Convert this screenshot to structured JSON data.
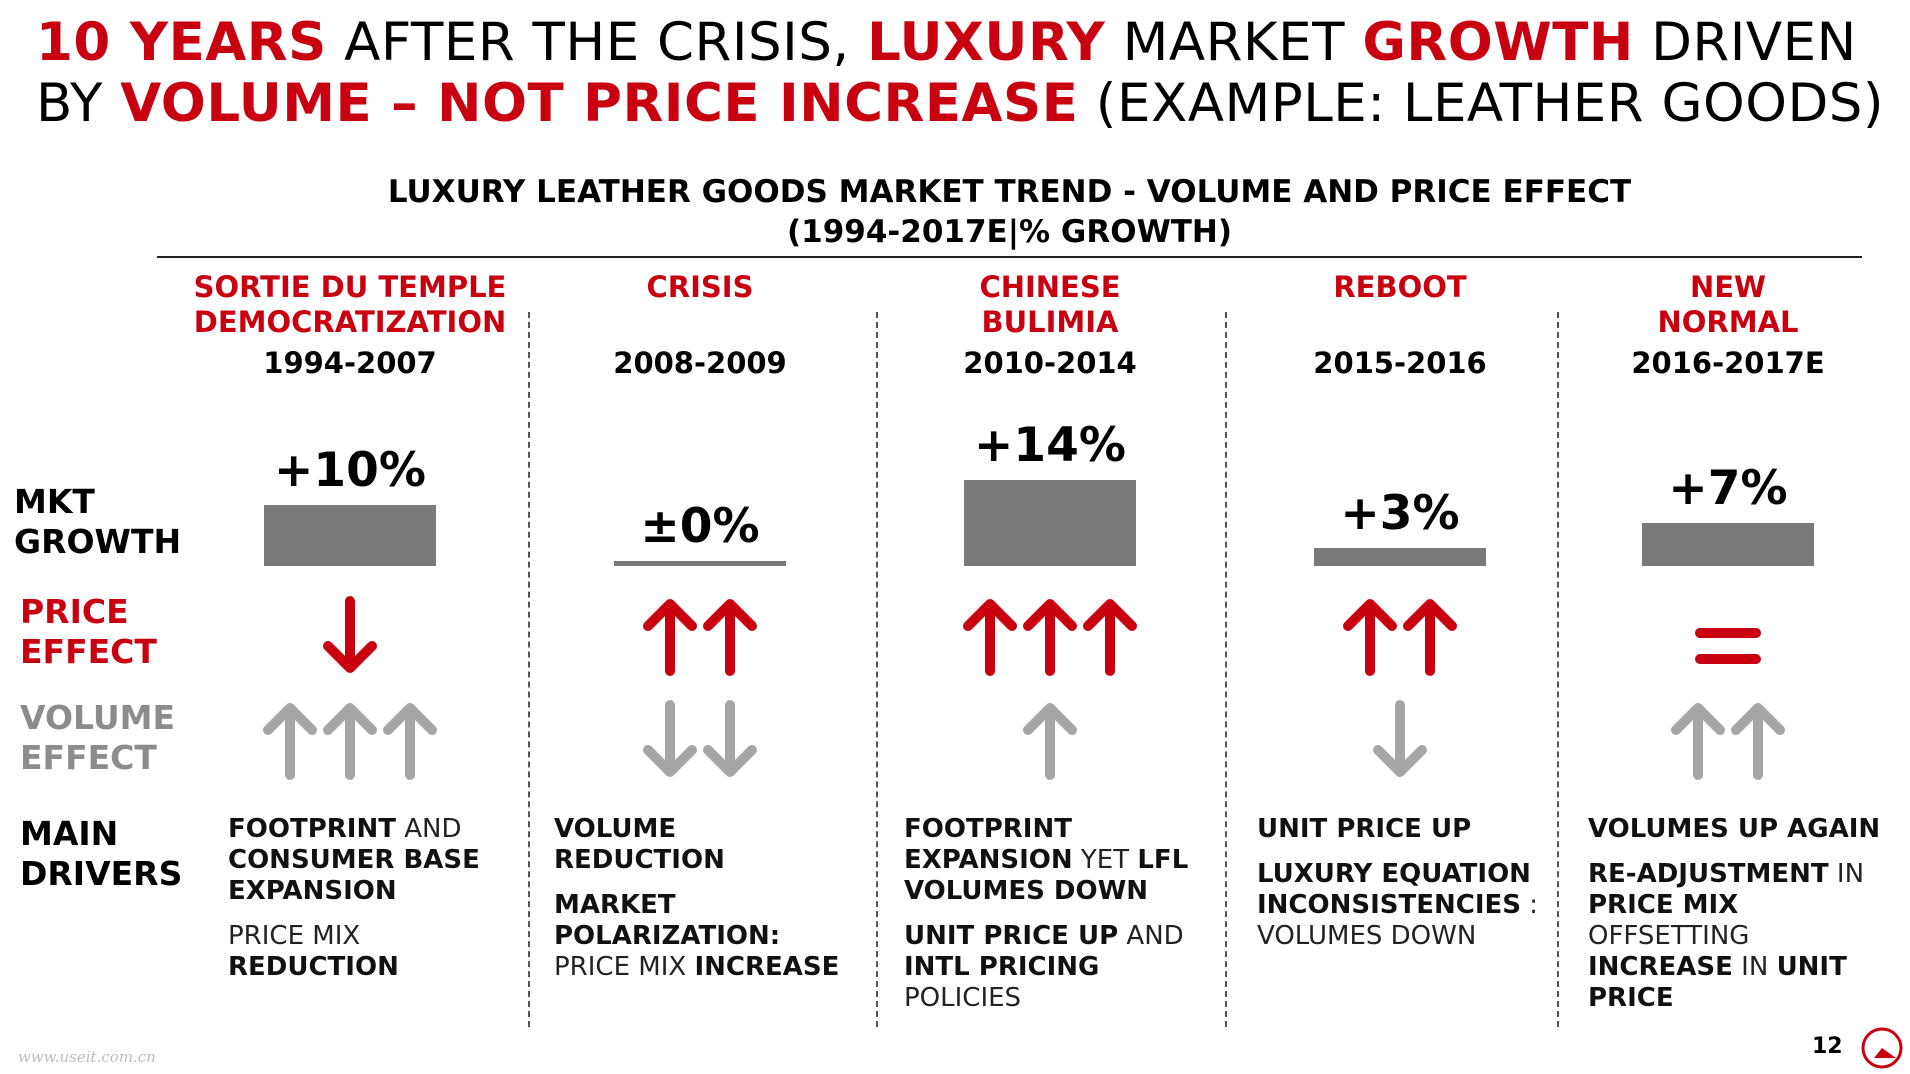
{
  "title": {
    "line1": [
      {
        "text": "10 YEARS",
        "hl": true
      },
      {
        "text": " AFTER THE CRISIS, ",
        "hl": false
      },
      {
        "text": "LUXURY",
        "hl": true
      },
      {
        "text": " MARKET ",
        "hl": false
      },
      {
        "text": "GROWTH",
        "hl": true
      },
      {
        "text": " DRIVEN",
        "hl": false
      }
    ],
    "line2": [
      {
        "text": "BY ",
        "hl": false
      },
      {
        "text": "VOLUME – NOT PRICE INCREASE",
        "hl": true
      },
      {
        "text": " (EXAMPLE: LEATHER GOODS)",
        "hl": false
      }
    ]
  },
  "colors": {
    "accent": "#c8000f",
    "bar": "#7a7a7a",
    "volume_arrow": "#a6a6a6",
    "text": "#000000"
  },
  "row_labels": {
    "growth": [
      "MKT",
      "GROWTH"
    ],
    "price": [
      "PRICE",
      "EFFECT"
    ],
    "volume": [
      "VOLUME",
      "EFFECT"
    ],
    "drivers": [
      "MAIN",
      "DRIVERS"
    ]
  },
  "chart_data": {
    "type": "bar",
    "title": "LUXURY LEATHER GOODS MARKET TREND - VOLUME AND PRICE EFFECT",
    "subtitle": "(1994-2017E|% GROWTH)",
    "categories": [
      "1994-2007",
      "2008-2009",
      "2010-2014",
      "2015-2016",
      "2016-2017E"
    ],
    "values": [
      10,
      0,
      14,
      3,
      7
    ],
    "value_labels": [
      "+10%",
      "±0%",
      "+14%",
      "+3%",
      "+7%"
    ],
    "ylim": [
      0,
      14
    ],
    "grid": false,
    "legend": "none"
  },
  "periods": [
    {
      "name": [
        "SORTIE DU TEMPLE",
        "DEMOCRATIZATION"
      ],
      "years": "1994-2007",
      "price_effect": {
        "direction": "down",
        "count": 1
      },
      "volume_effect": {
        "direction": "up",
        "count": 3
      },
      "drivers": [
        [
          {
            "t": "FOOTPRINT",
            "b": true
          },
          {
            "t": " AND ",
            "b": false
          },
          {
            "t": "CONSUMER BASE EXPANSION",
            "b": true
          }
        ],
        [
          {
            "t": "PRICE MIX ",
            "b": false
          },
          {
            "t": "REDUCTION",
            "b": true
          }
        ]
      ]
    },
    {
      "name": [
        "CRISIS"
      ],
      "years": "2008-2009",
      "price_effect": {
        "direction": "up",
        "count": 2
      },
      "volume_effect": {
        "direction": "down",
        "count": 2
      },
      "drivers": [
        [
          {
            "t": "VOLUME REDUCTION",
            "b": true
          }
        ],
        [
          {
            "t": "MARKET POLARIZATION:",
            "b": true
          },
          {
            "t": " PRICE MIX ",
            "b": false
          },
          {
            "t": "INCREASE",
            "b": true
          }
        ]
      ]
    },
    {
      "name": [
        "CHINESE",
        "BULIMIA"
      ],
      "years": "2010-2014",
      "price_effect": {
        "direction": "up",
        "count": 3
      },
      "volume_effect": {
        "direction": "up",
        "count": 1
      },
      "drivers": [
        [
          {
            "t": "FOOTPRINT EXPANSION",
            "b": true
          },
          {
            "t": " YET ",
            "b": false
          },
          {
            "t": "LFL VOLUMES DOWN",
            "b": true
          }
        ],
        [
          {
            "t": "UNIT PRICE UP",
            "b": true
          },
          {
            "t": " AND ",
            "b": false
          },
          {
            "t": "INTL PRICING",
            "b": true
          },
          {
            "t": " POLICIES",
            "b": false
          }
        ]
      ]
    },
    {
      "name": [
        "REBOOT"
      ],
      "years": "2015-2016",
      "price_effect": {
        "direction": "up",
        "count": 2
      },
      "volume_effect": {
        "direction": "down",
        "count": 1
      },
      "drivers": [
        [
          {
            "t": "UNIT PRICE UP",
            "b": true
          }
        ],
        [
          {
            "t": "LUXURY EQUATION INCONSISTENCIES",
            "b": true
          },
          {
            "t": " : VOLUMES DOWN",
            "b": false
          }
        ]
      ]
    },
    {
      "name": [
        "NEW",
        "NORMAL"
      ],
      "years": "2016-2017E",
      "price_effect": {
        "direction": "equal",
        "count": 1
      },
      "volume_effect": {
        "direction": "up",
        "count": 2
      },
      "drivers": [
        [
          {
            "t": "VOLUMES UP AGAIN",
            "b": true
          }
        ],
        [
          {
            "t": "RE-ADJUSTMENT",
            "b": true
          },
          {
            "t": " IN ",
            "b": false
          },
          {
            "t": "PRICE MIX",
            "b": true
          },
          {
            "t": " OFFSETTING ",
            "b": false
          },
          {
            "t": "INCREASE",
            "b": true
          },
          {
            "t": " IN ",
            "b": false
          },
          {
            "t": "UNIT PRICE",
            "b": true
          }
        ]
      ]
    }
  ],
  "footer": {
    "page": "12",
    "watermark": "www.useit.com.cn"
  }
}
